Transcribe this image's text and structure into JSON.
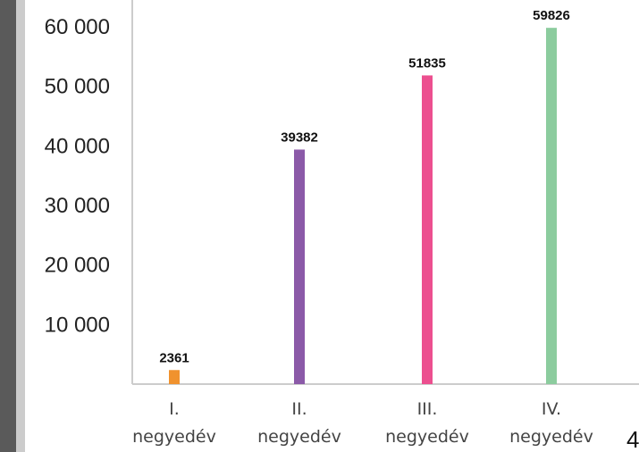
{
  "chart_data": {
    "type": "bar",
    "categories": [
      [
        "I.",
        "negyedév"
      ],
      [
        "II.",
        "negyedév"
      ],
      [
        "III.",
        "negyedév"
      ],
      [
        "IV.",
        "negyedév"
      ]
    ],
    "values": [
      2361,
      39382,
      51835,
      59826
    ],
    "data_labels": [
      "2361",
      "39382",
      "51835",
      "59826"
    ],
    "bar_colors": [
      "#f0922e",
      "#8b5aa8",
      "#ec4f8f",
      "#8ccc9e"
    ],
    "ytick_values": [
      10000,
      20000,
      30000,
      40000,
      50000,
      60000
    ],
    "ytick_labels": [
      "10 000",
      "20 000",
      "30 000",
      "40 000",
      "50 000",
      "60 000"
    ],
    "ylim": [
      0,
      64000
    ],
    "title": "",
    "xlabel": "",
    "ylabel": "",
    "grid": false,
    "legend": "none"
  },
  "corner_text": "4"
}
